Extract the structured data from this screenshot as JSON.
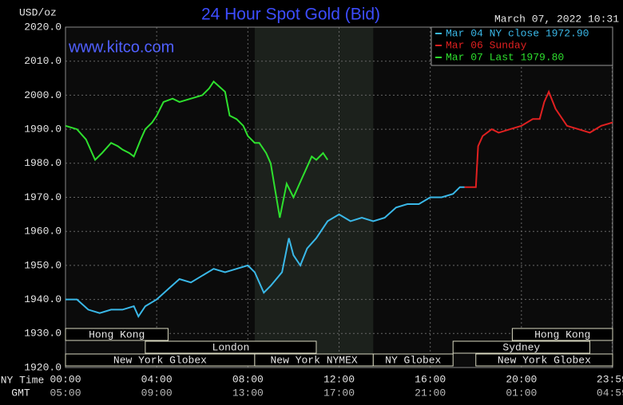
{
  "chart_data": {
    "type": "line",
    "title": "24 Hour Spot Gold (Bid)",
    "y_unit": "USD/oz",
    "timestamp": "March 07, 2022 10:31",
    "watermark": "www.kitco.com",
    "x_label": "NY Time",
    "x2_label": "GMT",
    "xlim": [
      0,
      24
    ],
    "ylim": [
      1920,
      2020
    ],
    "grid": true,
    "yticks": [
      {
        "value": 1920,
        "label": "1920.0"
      },
      {
        "value": 1930,
        "label": "1930.0"
      },
      {
        "value": 1940,
        "label": "1940.0"
      },
      {
        "value": 1950,
        "label": "1950.0"
      },
      {
        "value": 1960,
        "label": "1960.0"
      },
      {
        "value": 1970,
        "label": "1970.0"
      },
      {
        "value": 1980,
        "label": "1980.0"
      },
      {
        "value": 1990,
        "label": "1990.0"
      },
      {
        "value": 2000,
        "label": "2000.0"
      },
      {
        "value": 2010,
        "label": "2010.0"
      },
      {
        "value": 2020,
        "label": "2020.0"
      }
    ],
    "xticks": [
      {
        "value": 0,
        "label": "00:00"
      },
      {
        "value": 4,
        "label": "04:00"
      },
      {
        "value": 8,
        "label": "08:00"
      },
      {
        "value": 12,
        "label": "12:00"
      },
      {
        "value": 16,
        "label": "16:00"
      },
      {
        "value": 20,
        "label": "20:00"
      },
      {
        "value": 23.98,
        "label": "23:59"
      }
    ],
    "x2ticks": [
      {
        "value": 0,
        "label": "05:00"
      },
      {
        "value": 4,
        "label": "09:00"
      },
      {
        "value": 8,
        "label": "13:00"
      },
      {
        "value": 12,
        "label": "17:00"
      },
      {
        "value": 16,
        "label": "21:00"
      },
      {
        "value": 20,
        "label": "01:00"
      },
      {
        "value": 23.98,
        "label": "04:59"
      }
    ],
    "shaded_range": [
      8.3,
      13.5
    ],
    "sessions": [
      {
        "name": "Hong Kong",
        "start": 0,
        "end": 4.5
      },
      {
        "name": "London",
        "start": 3.5,
        "end": 11
      },
      {
        "name": "New York Globex",
        "start": 0,
        "end": 8.3
      },
      {
        "name": "New York NYMEX",
        "start": 8.3,
        "end": 13.5
      },
      {
        "name": "NY Globex",
        "start": 13.5,
        "end": 17
      },
      {
        "name": "Hong Kong",
        "start": 19.6,
        "end": 24
      },
      {
        "name": "Sydney",
        "start": 17,
        "end": 23
      },
      {
        "name": "New York Globex",
        "start": 18,
        "end": 24
      }
    ],
    "series": [
      {
        "name": "Mar 04 NY close 1972.90",
        "color": "#3ab8e8",
        "x": [
          0,
          0.5,
          1,
          1.5,
          2,
          2.5,
          3,
          3.2,
          3.5,
          4,
          4.5,
          5,
          5.5,
          6,
          6.5,
          7,
          7.5,
          8,
          8.3,
          8.7,
          9,
          9.5,
          9.8,
          10,
          10.3,
          10.6,
          11,
          11.5,
          12,
          12.5,
          13,
          13.5,
          14,
          14.5,
          15,
          15.5,
          16,
          16.5,
          17,
          17.3,
          17.5
        ],
        "values": [
          1940,
          1940,
          1937,
          1936,
          1937,
          1937,
          1938,
          1935,
          1938,
          1940,
          1943,
          1946,
          1945,
          1947,
          1949,
          1948,
          1949,
          1950,
          1948,
          1942,
          1944,
          1948,
          1958,
          1953,
          1950,
          1955,
          1958,
          1963,
          1965,
          1963,
          1964,
          1963,
          1964,
          1967,
          1968,
          1968,
          1970,
          1970,
          1971,
          1973,
          1973
        ]
      },
      {
        "name": "Mar 06 Sunday",
        "color": "#e02020",
        "x": [
          17.5,
          18,
          18.1,
          18.3,
          18.7,
          19,
          19.5,
          20,
          20.5,
          20.8,
          21,
          21.2,
          21.5,
          22,
          22.5,
          23,
          23.5,
          24
        ],
        "values": [
          1973,
          1973,
          1985,
          1988,
          1990,
          1989,
          1990,
          1991,
          1993,
          1993,
          1998,
          2001,
          1996,
          1991,
          1990,
          1989,
          1991,
          1992
        ]
      },
      {
        "name": "Mar 07 Last 1979.80",
        "color": "#2ee02e",
        "x": [
          0,
          0.5,
          0.9,
          1.3,
          1.6,
          2,
          2.3,
          2.5,
          2.8,
          3,
          3.3,
          3.5,
          3.8,
          4,
          4.3,
          4.7,
          5,
          5.5,
          6,
          6.3,
          6.5,
          7,
          7.2,
          7.5,
          7.8,
          8,
          8.3,
          8.5,
          8.8,
          9,
          9.2,
          9.4,
          9.7,
          10,
          10.4,
          10.8,
          11,
          11.3,
          11.5
        ],
        "values": [
          1991,
          1990,
          1987,
          1981,
          1983,
          1986,
          1985,
          1984,
          1983,
          1982,
          1987,
          1990,
          1992,
          1994,
          1998,
          1999,
          1998,
          1999,
          2000,
          2002,
          2004,
          2001,
          1994,
          1993,
          1991,
          1988,
          1986,
          1986,
          1983,
          1980,
          1972,
          1964,
          1974,
          1970,
          1976,
          1982,
          1981,
          1983,
          1981
        ]
      }
    ]
  }
}
